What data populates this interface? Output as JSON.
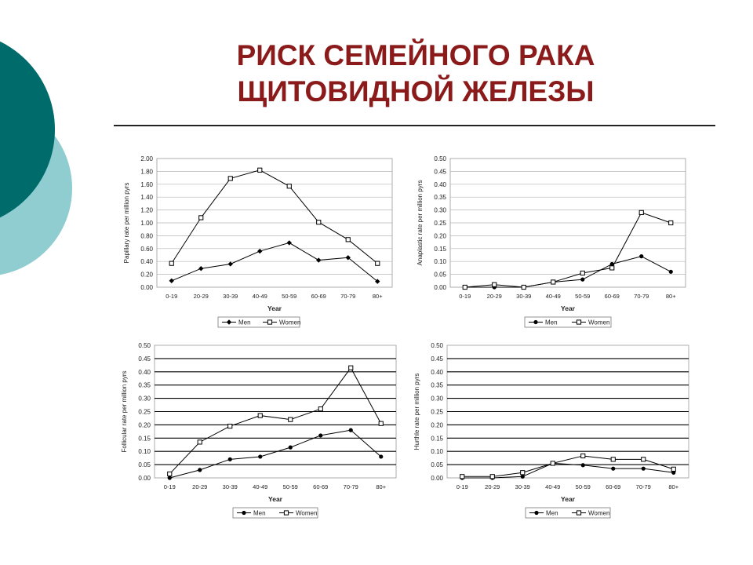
{
  "slide": {
    "title_line1": "РИСК СЕМЕЙНОГО РАКА",
    "title_line2": "ЩИТОВИДНОЙ ЖЕЛЕЗЫ",
    "title_color": "#8b1a1a",
    "accent_teal_dark": "#006b6b",
    "accent_teal_light": "#8fcdd0"
  },
  "chart_data": [
    {
      "type": "line",
      "categories": [
        "0-19",
        "20-29",
        "30-39",
        "40-49",
        "50-59",
        "60-69",
        "70-79",
        "80+"
      ],
      "series": [
        {
          "name": "Men",
          "marker": "diamond",
          "values": [
            0.1,
            0.29,
            0.36,
            0.56,
            0.69,
            0.42,
            0.46,
            0.09
          ]
        },
        {
          "name": "Women",
          "marker": "square-open",
          "values": [
            0.37,
            1.08,
            1.69,
            1.82,
            1.57,
            1.01,
            0.74,
            0.37
          ]
        }
      ],
      "xlabel": "Year",
      "ylabel": "Papillary rate per million pyrs",
      "ylim": [
        0,
        2.0
      ],
      "yticks": [
        "0.00",
        "0.20",
        "0.40",
        "0.60",
        "0.80",
        "1.00",
        "1.20",
        "1.40",
        "1.60",
        "1.80",
        "2.00"
      ],
      "grid": true,
      "legend": "bottom"
    },
    {
      "type": "line",
      "categories": [
        "0-19",
        "20-29",
        "30-39",
        "40-49",
        "50-59",
        "60-69",
        "70-79",
        "80+"
      ],
      "series": [
        {
          "name": "Men",
          "marker": "circle",
          "values": [
            0.0,
            0.0,
            0.0,
            0.02,
            0.03,
            0.09,
            0.12,
            0.06
          ]
        },
        {
          "name": "Women",
          "marker": "square-open",
          "values": [
            0.0,
            0.01,
            0.0,
            0.02,
            0.055,
            0.075,
            0.29,
            0.25
          ]
        }
      ],
      "xlabel": "Year",
      "ylabel": "Anaplastic rate per million pyrs",
      "ylim": [
        0,
        0.5
      ],
      "yticks": [
        "0.00",
        "0.05",
        "0.10",
        "0.15",
        "0.20",
        "0.25",
        "0.30",
        "0.35",
        "0.40",
        "0.45",
        "0.50"
      ],
      "grid": true,
      "legend": "bottom"
    },
    {
      "type": "line",
      "categories": [
        "0-19",
        "20-29",
        "30-39",
        "40-49",
        "50-59",
        "60-69",
        "70-79",
        "80+"
      ],
      "series": [
        {
          "name": "Men",
          "marker": "circle",
          "values": [
            0.0,
            0.03,
            0.07,
            0.08,
            0.115,
            0.16,
            0.18,
            0.08
          ]
        },
        {
          "name": "Women",
          "marker": "square-open",
          "values": [
            0.015,
            0.135,
            0.195,
            0.235,
            0.22,
            0.26,
            0.415,
            0.205
          ]
        }
      ],
      "xlabel": "Year",
      "ylabel": "Follicular rate per million pyrs",
      "ylim": [
        0,
        0.5
      ],
      "yticks": [
        "0.00",
        "0.05",
        "0.10",
        "0.15",
        "0.20",
        "0.25",
        "0.30",
        "0.35",
        "0.40",
        "0.45",
        "0.50"
      ],
      "grid": true,
      "legend": "bottom"
    },
    {
      "type": "line",
      "categories": [
        "0-19",
        "20-29",
        "30-39",
        "40-49",
        "50-59",
        "60-69",
        "70-79",
        "80+"
      ],
      "series": [
        {
          "name": "Men",
          "marker": "circle",
          "values": [
            0.0,
            0.0,
            0.005,
            0.055,
            0.048,
            0.035,
            0.035,
            0.02
          ]
        },
        {
          "name": "Women",
          "marker": "square-open",
          "values": [
            0.005,
            0.005,
            0.02,
            0.055,
            0.083,
            0.07,
            0.07,
            0.033
          ]
        }
      ],
      "xlabel": "Year",
      "ylabel": "Hurthle rate per million pyrs",
      "ylim": [
        0,
        0.5
      ],
      "yticks": [
        "0.00",
        "0.05",
        "0.10",
        "0.15",
        "0.20",
        "0.25",
        "0.30",
        "0.35",
        "0.40",
        "0.45",
        "0.50"
      ],
      "grid": true,
      "legend": "bottom"
    }
  ]
}
